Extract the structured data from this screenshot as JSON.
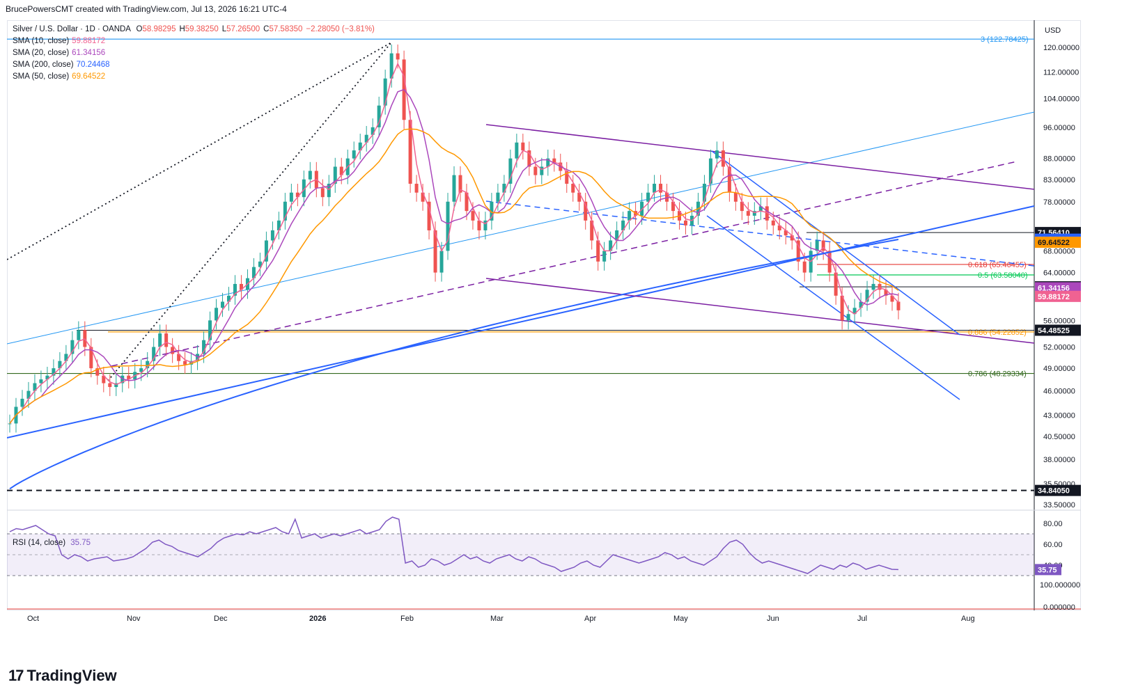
{
  "header": {
    "text": "BrucePowersCMT created with TradingView.com, Jul 13, 2026 16:21 UTC-4"
  },
  "legend": {
    "symbol": "Silver / U.S. Dollar · 1D · OANDA",
    "ohlc": [
      {
        "k": "O",
        "v": "58.98295"
      },
      {
        "k": "H",
        "v": "59.38250"
      },
      {
        "k": "L",
        "v": "57.26500"
      },
      {
        "k": "C",
        "v": "57.58350"
      },
      {
        "k": "",
        "v": "−2.28050 (−3.81%)"
      }
    ],
    "indicators": [
      {
        "label": "SMA (10, close)",
        "value": "59.88172",
        "color": "#f06292"
      },
      {
        "label": "SMA (20, close)",
        "value": "61.34156",
        "color": "#ab47bc"
      },
      {
        "label": "SMA (200, close)",
        "value": "70.24468",
        "color": "#2962ff"
      },
      {
        "label": "SMA (50, close)",
        "value": "69.64522",
        "color": "#ff9800"
      }
    ],
    "rsi_label": "RSI (14, close)",
    "rsi_value": "35.75"
  },
  "footer": {
    "brand": "TradingView"
  },
  "chart_data": {
    "type": "candlestick",
    "currency": "USD",
    "price_axis_ticks": [
      "120.00000",
      "112.00000",
      "104.00000",
      "96.00000",
      "88.00000",
      "83.00000",
      "78.00000",
      "68.00000",
      "64.00000",
      "56.00000",
      "52.00000",
      "49.00000",
      "46.00000",
      "43.00000",
      "40.50000",
      "38.00000",
      "35.50000",
      "33.50000"
    ],
    "price_axis_tick_values": [
      120,
      112,
      104,
      96,
      88,
      83,
      78,
      68,
      64,
      56,
      52,
      49,
      46,
      43,
      40.5,
      38,
      35.5,
      33.5
    ],
    "price_badges": [
      {
        "label": "71.56410",
        "value": 71.5641,
        "bg": "#131722",
        "fg": "#ffffff"
      },
      {
        "label": "70.24468",
        "value": 70.24468,
        "bg": "#2962ff",
        "fg": "#ffffff"
      },
      {
        "label": "69.64522",
        "value": 69.64522,
        "bg": "#ff9800",
        "fg": "#131722"
      },
      {
        "label": "61.50500",
        "value": 61.505,
        "bg": "#131722",
        "fg": "#ffffff"
      },
      {
        "label": "61.34156",
        "value": 61.34156,
        "bg": "#ab47bc",
        "fg": "#ffffff"
      },
      {
        "label": "59.88172",
        "value": 59.88172,
        "bg": "#f06292",
        "fg": "#ffffff"
      },
      {
        "label": "54.48525",
        "value": 54.48525,
        "bg": "#131722",
        "fg": "#ffffff"
      },
      {
        "label": "34.84050",
        "value": 34.8405,
        "bg": "#131722",
        "fg": "#ffffff"
      }
    ],
    "fib_levels": [
      {
        "label": "3 (122.78425)",
        "value": 122.78425,
        "color": "#2196f3"
      },
      {
        "label": "0.618 (65.46455)",
        "value": 65.46455,
        "color": "#e53935"
      },
      {
        "label": "0.5 (63.58040)",
        "value": 63.5804,
        "color": "#00c853"
      },
      {
        "label": "0.886 (54.22852)",
        "value": 54.22852,
        "color": "#ff9800"
      },
      {
        "label": "0.786 (48.29334)",
        "value": 48.29334,
        "color": "#33691e"
      }
    ],
    "time_axis": [
      "Oct",
      "Nov",
      "Dec",
      "2026",
      "Feb",
      "Mar",
      "Apr",
      "May",
      "Jun",
      "Jul",
      "Aug"
    ],
    "rsi": {
      "ticks": [
        "80.00",
        "60.00",
        "40.00"
      ],
      "tick_values": [
        80,
        60,
        40
      ],
      "overbought": 70,
      "oversold": 30,
      "mid": 50,
      "last": 35.75,
      "values": [
        72,
        75,
        74,
        76,
        78,
        74,
        70,
        68,
        50,
        46,
        50,
        48,
        44,
        46,
        47,
        48,
        44,
        45,
        46,
        48,
        52,
        56,
        62,
        64,
        60,
        58,
        54,
        52,
        50,
        48,
        52,
        56,
        62,
        66,
        68,
        70,
        69,
        72,
        70,
        72,
        74,
        76,
        72,
        70,
        84,
        66,
        68,
        70,
        66,
        68,
        70,
        68,
        70,
        72,
        74,
        70,
        72,
        74,
        82,
        86,
        84,
        42,
        44,
        38,
        40,
        46,
        44,
        40,
        42,
        46,
        50,
        46,
        48,
        44,
        42,
        46,
        48,
        50,
        46,
        44,
        48,
        46,
        42,
        40,
        38,
        34,
        36,
        38,
        42,
        44,
        40,
        38,
        44,
        50,
        48,
        46,
        44,
        42,
        44,
        46,
        48,
        52,
        50,
        46,
        48,
        44,
        42,
        40,
        44,
        48,
        56,
        62,
        64,
        60,
        52,
        46,
        42,
        44,
        42,
        40,
        38,
        36,
        34,
        32,
        36,
        40,
        38,
        36,
        40,
        38,
        42,
        40,
        36,
        38,
        40,
        38,
        36,
        35.75
      ]
    },
    "rsi_axis_extra": [
      "100.000000",
      "0.000000"
    ]
  }
}
